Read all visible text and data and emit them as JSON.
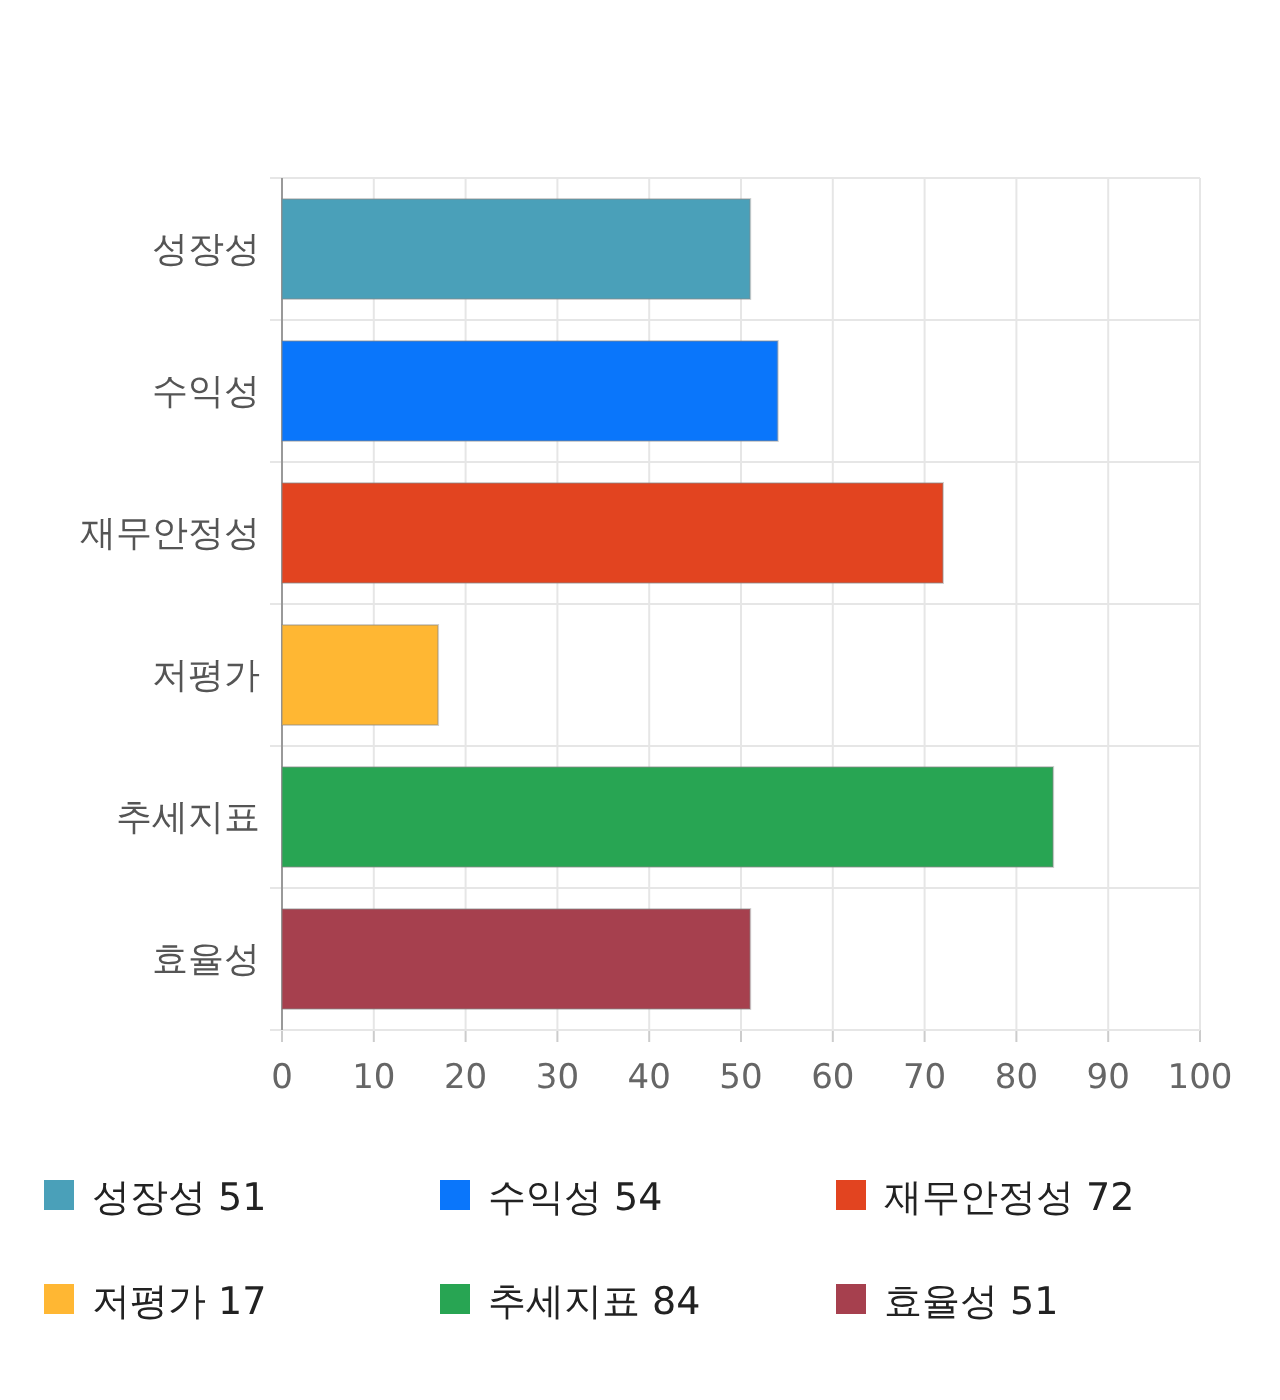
{
  "chart_data": {
    "type": "bar",
    "orientation": "horizontal",
    "stacked": true,
    "categories": [
      "성장성",
      "수익성",
      "재무안정성",
      "저평가",
      "추세지표",
      "효율성"
    ],
    "series": [
      {
        "name": "성장성 51",
        "color": "#4aa0b9",
        "values": [
          51,
          null,
          null,
          null,
          null,
          null
        ]
      },
      {
        "name": "수익성 54",
        "color": "#0a76fb",
        "values": [
          null,
          54,
          null,
          null,
          null,
          null
        ]
      },
      {
        "name": "재무안정성 72",
        "color": "#e24420",
        "values": [
          null,
          null,
          72,
          null,
          null,
          null
        ]
      },
      {
        "name": "저평가 17",
        "color": "#ffb733",
        "values": [
          null,
          null,
          null,
          17,
          null,
          null
        ]
      },
      {
        "name": "추세지표 84",
        "color": "#28a553",
        "values": [
          null,
          null,
          null,
          null,
          84,
          null
        ]
      },
      {
        "name": "효율성 51",
        "color": "#a6404e",
        "values": [
          null,
          null,
          null,
          null,
          null,
          51
        ]
      }
    ],
    "xlim": [
      0,
      100
    ],
    "xticks": [
      0,
      10,
      20,
      30,
      40,
      50,
      60,
      70,
      80,
      90,
      100
    ],
    "grid": true,
    "legend": "bottom"
  }
}
